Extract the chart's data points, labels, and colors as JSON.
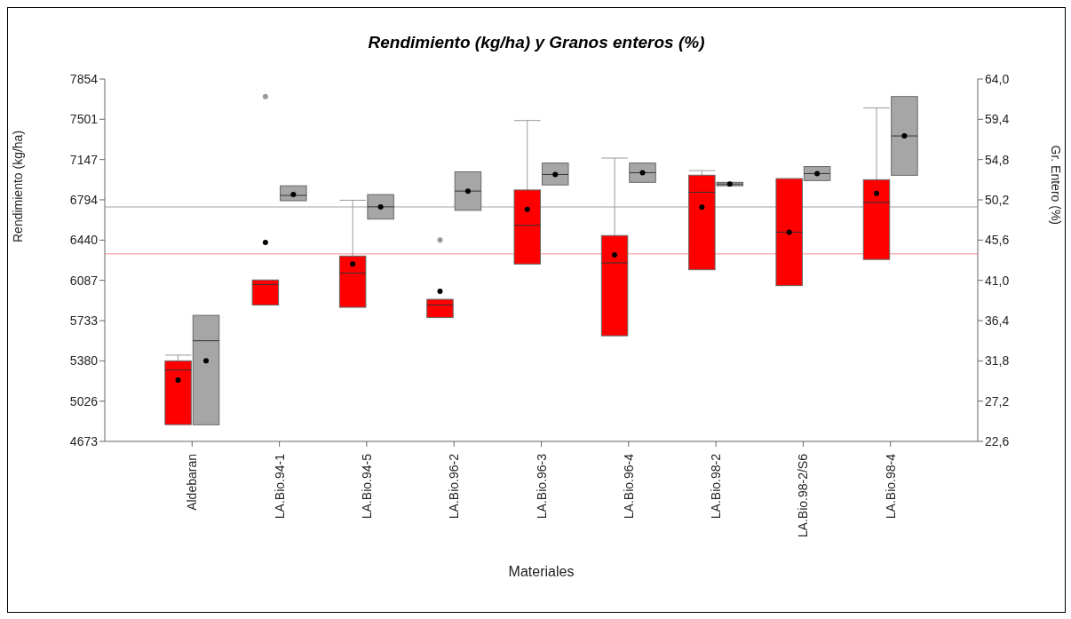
{
  "chart_data": {
    "type": "box",
    "title": "Rendimiento (kg/ha) y Granos enteros (%)",
    "xlabel": "Materiales",
    "ylabel": "Rendimiento (kg/ha)",
    "y2label": "Gr. Entero (%)",
    "categories": [
      "Aldebaran",
      "LA.Bio.94-1",
      "LA.Bio.94-5",
      "LA.Bio.96-2",
      "LA.Bio.96-3",
      "LA.Bio.96-4",
      "LA.Bio.98-2",
      "LA.Bio.98-2/S6",
      "LA.Bio.98-4"
    ],
    "ylim": [
      4673,
      7854
    ],
    "yticks": [
      4673,
      5026,
      5380,
      5733,
      6087,
      6440,
      6794,
      7147,
      7501,
      7854
    ],
    "y2lim": [
      22.6,
      64.0
    ],
    "y2ticks": [
      {
        "value": 22.6,
        "label": "22,6"
      },
      {
        "value": 27.2,
        "label": "27,2"
      },
      {
        "value": 31.8,
        "label": "31,8"
      },
      {
        "value": 36.4,
        "label": "36,4"
      },
      {
        "value": 41.0,
        "label": "41,0"
      },
      {
        "value": 45.6,
        "label": "45,6"
      },
      {
        "value": 50.2,
        "label": "50,2"
      },
      {
        "value": 54.8,
        "label": "54,8"
      },
      {
        "value": 59.4,
        "label": "59,4"
      },
      {
        "value": 64.0,
        "label": "64,0"
      }
    ],
    "series": [
      {
        "color": "#ff0000",
        "boxes": [
          {
            "low": 4820,
            "q1": 4820,
            "median": 5300,
            "q3": 5380,
            "high": 5430,
            "mean": 5210
          },
          {
            "low": 5870,
            "q1": 5870,
            "median": 6050,
            "q3": 6090,
            "high": 6090,
            "mean": 6420,
            "outliers": [
              7700
            ]
          },
          {
            "low": 5850,
            "q1": 5850,
            "median": 6150,
            "q3": 6300,
            "high": 6790,
            "mean": 6230
          },
          {
            "low": 5760,
            "q1": 5760,
            "median": 5870,
            "q3": 5920,
            "high": 5920,
            "mean": 5990,
            "outliers": [
              6440
            ]
          },
          {
            "low": 6230,
            "q1": 6230,
            "median": 6570,
            "q3": 6880,
            "high": 7490,
            "mean": 6710
          },
          {
            "low": 5600,
            "q1": 5600,
            "median": 6240,
            "q3": 6480,
            "high": 7160,
            "mean": 6310
          },
          {
            "low": 6180,
            "q1": 6180,
            "median": 6860,
            "q3": 7010,
            "high": 7050,
            "mean": 6730
          },
          {
            "low": 6040,
            "q1": 6040,
            "median": 6510,
            "q3": 6980,
            "high": 6980,
            "mean": 6510
          },
          {
            "low": 6270,
            "q1": 6270,
            "median": 6770,
            "q3": 6970,
            "high": 7600,
            "mean": 6850
          }
        ]
      },
      {
        "color": "#a6a6a6",
        "axis": "y2",
        "boxes": [
          {
            "low": 24.5,
            "q1": 24.5,
            "median": 34.1,
            "q3": 37.0,
            "high": 37.0,
            "mean": 31.8
          },
          {
            "low": 50.1,
            "q1": 50.1,
            "median": 50.7,
            "q3": 51.8,
            "high": 51.8,
            "mean": 50.8
          },
          {
            "low": 48.0,
            "q1": 48.0,
            "median": 49.4,
            "q3": 50.8,
            "high": 50.8,
            "mean": 49.4
          },
          {
            "low": 49.0,
            "q1": 49.0,
            "median": 51.2,
            "q3": 53.4,
            "high": 53.4,
            "mean": 51.2
          },
          {
            "low": 51.9,
            "q1": 51.9,
            "median": 53.1,
            "q3": 54.4,
            "high": 54.4,
            "mean": 53.1
          },
          {
            "low": 52.2,
            "q1": 52.2,
            "median": 53.3,
            "q3": 54.4,
            "high": 54.4,
            "mean": 53.3
          },
          {
            "low": 51.8,
            "q1": 51.8,
            "median": 52.0,
            "q3": 52.2,
            "high": 52.2,
            "mean": 52.0
          },
          {
            "low": 52.4,
            "q1": 52.4,
            "median": 53.2,
            "q3": 54.0,
            "high": 54.0,
            "mean": 53.2
          },
          {
            "low": 53.0,
            "q1": 53.0,
            "median": 57.5,
            "q3": 62.0,
            "high": 62.0,
            "mean": 57.5
          }
        ]
      }
    ],
    "ref_lines": [
      {
        "axis": "y2",
        "value": 49.4,
        "color": "#c0c0c0"
      },
      {
        "axis": "y",
        "value": 6320,
        "color": "#ffb3b3"
      }
    ]
  }
}
